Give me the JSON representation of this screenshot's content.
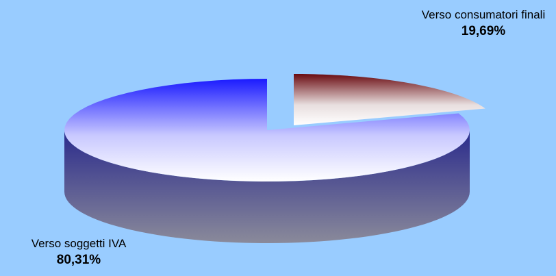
{
  "chart_data": {
    "type": "pie",
    "style": "3d-exploded",
    "categories": [
      "Verso soggetti IVA",
      "Verso consumatori finali"
    ],
    "values": [
      80.31,
      19.69
    ],
    "value_labels": [
      "80,31%",
      "19,69%"
    ],
    "colors": [
      "#0000ff",
      "#660000"
    ],
    "legend": "none",
    "background": "#99ccff"
  }
}
